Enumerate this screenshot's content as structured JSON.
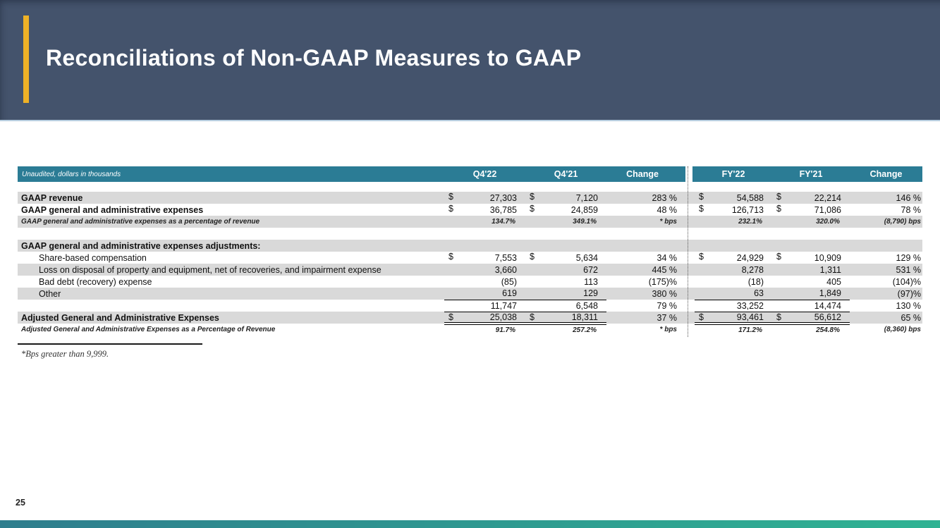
{
  "slide": {
    "title": "Reconciliations of Non-GAAP Measures to GAAP",
    "page_number": "25",
    "footnote": "*Bps greater than 9,999."
  },
  "colors": {
    "header_bg": "#44536C",
    "accent_yellow": "#EFB226",
    "table_header_teal": "#2B7C95",
    "row_gray": "#D9D9D9",
    "header_underline_blue": "#B9CFE0",
    "footer_gradient_left": "#2E7D8D",
    "footer_gradient_right": "#2FB393"
  },
  "table": {
    "note": "Unaudited, dollars in thousands",
    "columns": [
      "Q4'22",
      "Q4'21",
      "Change",
      "FY'22",
      "FY'21",
      "Change"
    ],
    "rows": [
      {
        "type": "spacer",
        "h": 14
      },
      {
        "label": "GAAP revenue",
        "bg": "gray",
        "bold": true,
        "cells": [
          {
            "d": "$",
            "v": "27,303"
          },
          {
            "d": "$",
            "v": "7,120"
          },
          {
            "v": "283 %"
          },
          {
            "d": "$",
            "v": "54,588"
          },
          {
            "d": "$",
            "v": "22,214"
          },
          {
            "v": "146 %"
          }
        ]
      },
      {
        "label": "GAAP general and administrative expenses",
        "bg": "white",
        "bold": true,
        "cells": [
          {
            "d": "$",
            "v": "36,785"
          },
          {
            "d": "$",
            "v": "24,859"
          },
          {
            "v": "48 %"
          },
          {
            "d": "$",
            "v": "126,713"
          },
          {
            "d": "$",
            "v": "71,086"
          },
          {
            "v": "78 %"
          }
        ]
      },
      {
        "label": "GAAP general and administrative expenses as a percentage of revenue",
        "bg": "gray",
        "pct": true,
        "cells": [
          {
            "v": "134.7%"
          },
          {
            "v": "349.1%"
          },
          {
            "v": "* bps"
          },
          {
            "v": "232.1%"
          },
          {
            "v": "320.0%"
          },
          {
            "v": "(8,790) bps"
          }
        ]
      },
      {
        "type": "spacer",
        "h": 17
      },
      {
        "label": "GAAP general and administrative expenses adjustments:",
        "bg": "gray",
        "bold": true,
        "cells": [
          null,
          null,
          null,
          null,
          null,
          null
        ]
      },
      {
        "label": "Share-based compensation",
        "bg": "white",
        "indent": true,
        "cells": [
          {
            "d": "$",
            "v": "7,553"
          },
          {
            "d": "$",
            "v": "5,634"
          },
          {
            "v": "34 %"
          },
          {
            "d": "$",
            "v": "24,929"
          },
          {
            "d": "$",
            "v": "10,909"
          },
          {
            "v": "129 %"
          }
        ]
      },
      {
        "label": "Loss on disposal of property and equipment, net of recoveries, and impairment expense",
        "bg": "gray",
        "indent": true,
        "cells": [
          {
            "v": "3,660"
          },
          {
            "v": "672"
          },
          {
            "v": "445 %"
          },
          {
            "v": "8,278"
          },
          {
            "v": "1,311"
          },
          {
            "v": "531 %"
          }
        ]
      },
      {
        "label": "Bad debt (recovery) expense",
        "bg": "white",
        "indent": true,
        "cells": [
          {
            "v": "(85)"
          },
          {
            "v": "113"
          },
          {
            "v": "(175)%"
          },
          {
            "v": "(18)"
          },
          {
            "v": "405"
          },
          {
            "v": "(104)%"
          }
        ]
      },
      {
        "label": "Other",
        "bg": "gray",
        "indent": true,
        "underline": "u1",
        "cells": [
          {
            "v": "619"
          },
          {
            "v": "129"
          },
          {
            "v": "380 %"
          },
          {
            "v": "63"
          },
          {
            "v": "1,849"
          },
          {
            "v": "(97)%"
          }
        ]
      },
      {
        "label": "",
        "bg": "white",
        "underline": "u1",
        "cells": [
          {
            "v": "11,747"
          },
          {
            "v": "6,548"
          },
          {
            "v": "79 %"
          },
          {
            "v": "33,252"
          },
          {
            "v": "14,474"
          },
          {
            "v": "130 %"
          }
        ]
      },
      {
        "label": "Adjusted General and Administrative Expenses",
        "bg": "gray",
        "bold": true,
        "underline": "u2",
        "cells": [
          {
            "d": "$",
            "v": "25,038"
          },
          {
            "d": "$",
            "v": "18,311"
          },
          {
            "v": "37 %"
          },
          {
            "d": "$",
            "v": "93,461"
          },
          {
            "d": "$",
            "v": "56,612"
          },
          {
            "v": "65 %"
          }
        ]
      },
      {
        "label": "Adjusted General and Administrative Expenses as a Percentage of Revenue",
        "bg": "white",
        "pct": true,
        "cells": [
          {
            "v": "91.7%"
          },
          {
            "v": "257.2%"
          },
          {
            "v": "* bps"
          },
          {
            "v": "171.2%"
          },
          {
            "v": "254.8%"
          },
          {
            "v": "(8,360) bps"
          }
        ]
      }
    ]
  }
}
